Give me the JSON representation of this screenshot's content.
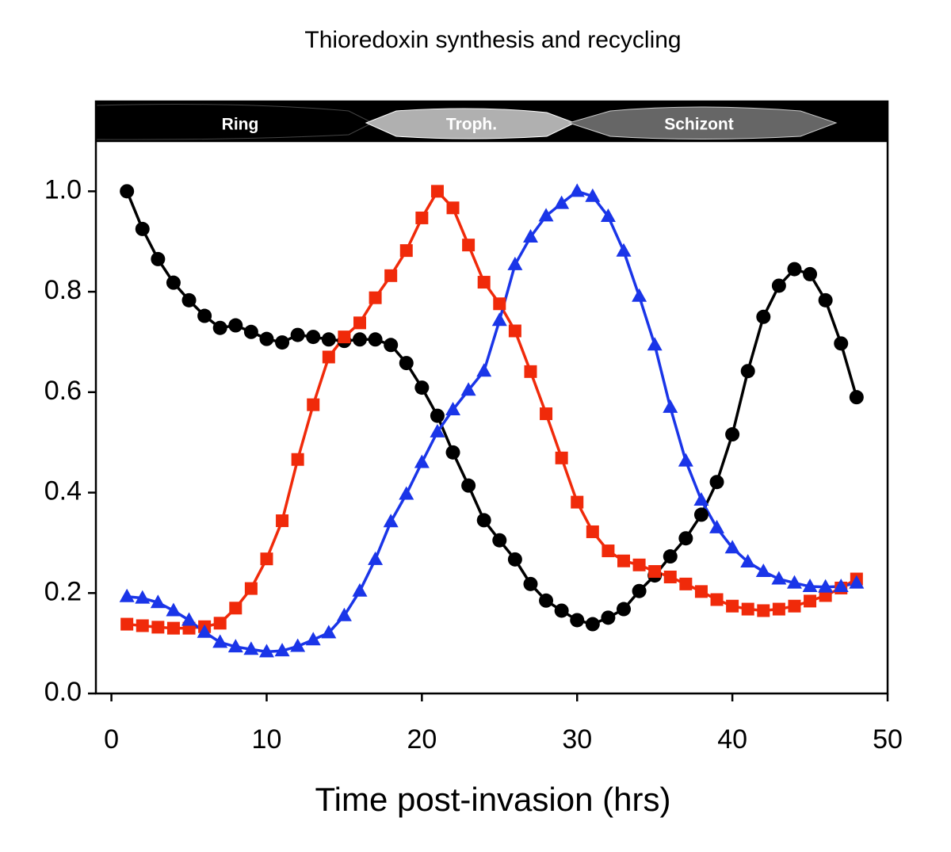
{
  "chart_data": {
    "type": "line",
    "title": "Thioredoxin synthesis and recycling",
    "x_label": "Time post-invasion (hrs)",
    "stage_labels": [
      "Ring",
      "Troph.",
      "Schizont"
    ],
    "x": [
      1,
      2,
      3,
      4,
      5,
      6,
      7,
      8,
      9,
      10,
      11,
      12,
      13,
      14,
      15,
      16,
      17,
      18,
      19,
      20,
      21,
      22,
      23,
      24,
      25,
      26,
      27,
      28,
      29,
      30,
      31,
      32,
      33,
      34,
      35,
      36,
      37,
      38,
      39,
      40,
      41,
      42,
      43,
      44,
      45,
      46,
      47,
      48
    ],
    "series": [
      {
        "color": "#000000",
        "marker": "circle",
        "values": [
          1.0,
          0.925,
          0.865,
          0.818,
          0.783,
          0.752,
          0.728,
          0.733,
          0.72,
          0.706,
          0.699,
          0.714,
          0.71,
          0.705,
          0.702,
          0.705,
          0.705,
          0.694,
          0.658,
          0.609,
          0.553,
          0.48,
          0.414,
          0.345,
          0.305,
          0.267,
          0.218,
          0.185,
          0.165,
          0.146,
          0.138,
          0.151,
          0.168,
          0.204,
          0.235,
          0.273,
          0.309,
          0.356,
          0.421,
          0.516,
          0.642,
          0.75,
          0.812,
          0.845,
          0.835,
          0.783,
          0.697,
          0.59
        ]
      },
      {
        "color": "#f02a0a",
        "marker": "square",
        "values": [
          0.138,
          0.135,
          0.132,
          0.13,
          0.13,
          0.133,
          0.14,
          0.17,
          0.209,
          0.268,
          0.344,
          0.466,
          0.575,
          0.67,
          0.71,
          0.738,
          0.788,
          0.832,
          0.882,
          0.947,
          1.0,
          0.967,
          0.893,
          0.819,
          0.776,
          0.722,
          0.641,
          0.557,
          0.469,
          0.381,
          0.322,
          0.284,
          0.264,
          0.256,
          0.243,
          0.232,
          0.218,
          0.203,
          0.187,
          0.174,
          0.168,
          0.165,
          0.168,
          0.174,
          0.184,
          0.195,
          0.21,
          0.228
        ]
      },
      {
        "color": "#1a35e8",
        "marker": "triangle",
        "values": [
          0.193,
          0.19,
          0.181,
          0.165,
          0.146,
          0.122,
          0.102,
          0.093,
          0.088,
          0.083,
          0.085,
          0.094,
          0.107,
          0.121,
          0.155,
          0.204,
          0.267,
          0.342,
          0.397,
          0.46,
          0.521,
          0.565,
          0.604,
          0.642,
          0.743,
          0.854,
          0.909,
          0.951,
          0.976,
          1.0,
          0.99,
          0.95,
          0.881,
          0.791,
          0.694,
          0.57,
          0.463,
          0.385,
          0.33,
          0.29,
          0.262,
          0.243,
          0.228,
          0.22,
          0.213,
          0.212,
          0.213,
          0.22
        ]
      }
    ],
    "xlim": [
      -1,
      50
    ],
    "xticks": [
      0,
      10,
      20,
      30,
      40,
      50
    ],
    "ylim": [
      0,
      1.1
    ],
    "yticks": [
      {
        "value": 0,
        "label": "0.0"
      },
      {
        "value": 0.2,
        "label": "0.2"
      },
      {
        "value": 0.4,
        "label": "0.4"
      },
      {
        "value": 0.6,
        "label": "0.6"
      },
      {
        "value": 0.8,
        "label": "0.8"
      },
      {
        "value": 1.0,
        "label": "1.0"
      }
    ],
    "grid": false
  }
}
